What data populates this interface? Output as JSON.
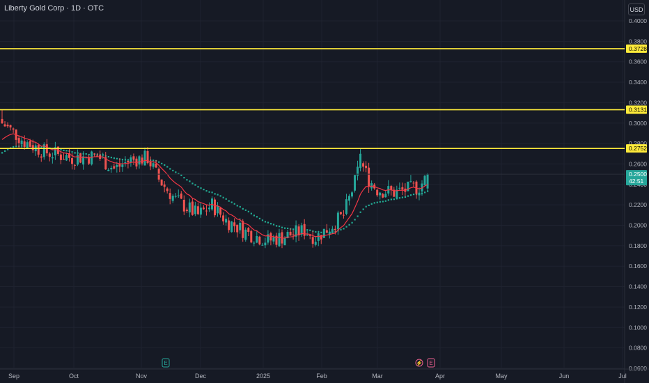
{
  "header": {
    "title": "Liberty Gold Corp · 1D · OTC",
    "currency": "USD"
  },
  "colors": {
    "background": "#161a25",
    "grid": "#1f2330",
    "up": "#26a69a",
    "down": "#ef5350",
    "level": "#ffeb3b",
    "ema_fast": "#f23645",
    "ema_slow": "#22ab94",
    "axis_text": "#b2b5be"
  },
  "chart_data": {
    "type": "candlestick",
    "title": "Liberty Gold Corp · 1D · OTC",
    "ylim": [
      0.06,
      0.41
    ],
    "y_ticks": [
      "0.0600",
      "0.0800",
      "0.1000",
      "0.1200",
      "0.1400",
      "0.1600",
      "0.1800",
      "0.2000",
      "0.2200",
      "0.2400",
      "0.2600",
      "0.2800",
      "0.3000",
      "0.3200",
      "0.3400",
      "0.3600",
      "0.3800",
      "0.4000"
    ],
    "x_ticks": [
      "Sep",
      "Oct",
      "Nov",
      "Dec",
      "2025",
      "Feb",
      "Mar",
      "Apr",
      "May",
      "Jun",
      "Jul"
    ],
    "levels": [
      {
        "value": 0.3728,
        "label": "0.3728"
      },
      {
        "value": 0.3131,
        "label": "0.3131"
      },
      {
        "value": 0.2752,
        "label": "0.2752"
      }
    ],
    "last_price": {
      "value": 0.25,
      "label": "0.2500",
      "countdown": "42:51"
    },
    "events": [
      {
        "type": "earnings",
        "label": "E",
        "date": "Nov"
      },
      {
        "type": "dividend",
        "label": "⚡",
        "date": "Mar"
      },
      {
        "type": "earnings",
        "label": "E",
        "date": "Mar"
      }
    ],
    "waypoints": [
      [
        0,
        0.3
      ],
      [
        8,
        0.282
      ],
      [
        15,
        0.272
      ],
      [
        25,
        0.266
      ],
      [
        34,
        0.268
      ],
      [
        40,
        0.255
      ],
      [
        46,
        0.264
      ],
      [
        52,
        0.266
      ],
      [
        56,
        0.245
      ],
      [
        62,
        0.225
      ],
      [
        70,
        0.21
      ],
      [
        75,
        0.22
      ],
      [
        80,
        0.205
      ],
      [
        88,
        0.192
      ],
      [
        95,
        0.185
      ],
      [
        102,
        0.19
      ],
      [
        108,
        0.195
      ],
      [
        112,
        0.188
      ],
      [
        117,
        0.198
      ],
      [
        122,
        0.21
      ],
      [
        126,
        0.242
      ],
      [
        128,
        0.262
      ],
      [
        131,
        0.245
      ],
      [
        134,
        0.235
      ],
      [
        140,
        0.232
      ],
      [
        145,
        0.235
      ],
      [
        149,
        0.238
      ],
      [
        152,
        0.248
      ]
    ],
    "ema_fast": {
      "start": 0.281,
      "period": 12
    },
    "ema_slow": {
      "start": 0.269,
      "period": 30
    }
  }
}
